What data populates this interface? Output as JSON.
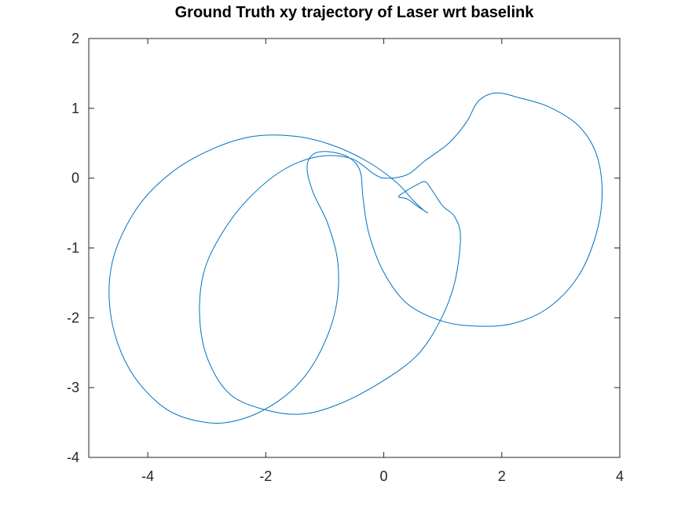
{
  "chart_data": {
    "type": "line",
    "title": "Ground Truth xy trajectory of Laser wrt baselink",
    "xlabel": "",
    "ylabel": "",
    "xlim": [
      -5,
      4
    ],
    "ylim": [
      -4,
      2
    ],
    "grid": false,
    "x_ticks": [
      -4,
      -2,
      0,
      2,
      4
    ],
    "y_ticks": [
      -4,
      -3,
      -2,
      -1,
      0,
      1,
      2
    ],
    "x_tick_labels": [
      "-4",
      "-2",
      "0",
      "2",
      "4"
    ],
    "y_tick_labels": [
      "-4",
      "-3",
      "-2",
      "-1",
      "0",
      "1",
      "2"
    ],
    "series": [
      {
        "color": "#0072bd",
        "points": [
          [
            0.7,
            -0.48
          ],
          [
            0.5,
            -0.32
          ],
          [
            0.2,
            -0.05
          ],
          [
            -0.3,
            0.25
          ],
          [
            -0.9,
            0.48
          ],
          [
            -1.5,
            0.6
          ],
          [
            -2.2,
            0.6
          ],
          [
            -2.9,
            0.42
          ],
          [
            -3.6,
            0.08
          ],
          [
            -4.2,
            -0.45
          ],
          [
            -4.6,
            -1.2
          ],
          [
            -4.62,
            -2.0
          ],
          [
            -4.3,
            -2.75
          ],
          [
            -3.7,
            -3.3
          ],
          [
            -3.0,
            -3.5
          ],
          [
            -2.4,
            -3.45
          ],
          [
            -1.8,
            -3.2
          ],
          [
            -1.35,
            -2.85
          ],
          [
            -1.0,
            -2.35
          ],
          [
            -0.8,
            -1.8
          ],
          [
            -0.78,
            -1.2
          ],
          [
            -0.95,
            -0.65
          ],
          [
            -1.2,
            -0.2
          ],
          [
            -1.3,
            0.15
          ],
          [
            -1.2,
            0.34
          ],
          [
            -0.95,
            0.38
          ],
          [
            -0.6,
            0.3
          ],
          [
            -0.4,
            0.1
          ],
          [
            -0.35,
            -0.3
          ],
          [
            -0.25,
            -0.8
          ],
          [
            0.0,
            -1.35
          ],
          [
            0.4,
            -1.8
          ],
          [
            1.0,
            -2.05
          ],
          [
            1.6,
            -2.12
          ],
          [
            2.2,
            -2.08
          ],
          [
            2.8,
            -1.85
          ],
          [
            3.3,
            -1.4
          ],
          [
            3.6,
            -0.8
          ],
          [
            3.7,
            -0.2
          ],
          [
            3.6,
            0.35
          ],
          [
            3.3,
            0.75
          ],
          [
            2.8,
            1.02
          ],
          [
            2.3,
            1.15
          ],
          [
            1.9,
            1.22
          ],
          [
            1.6,
            1.1
          ],
          [
            1.4,
            0.8
          ],
          [
            1.1,
            0.5
          ],
          [
            0.7,
            0.25
          ],
          [
            0.4,
            0.05
          ],
          [
            0.05,
            0.0
          ],
          [
            -0.15,
            0.05
          ],
          [
            -0.55,
            0.28
          ],
          [
            -1.1,
            0.31
          ],
          [
            -1.7,
            0.12
          ],
          [
            -2.3,
            -0.3
          ],
          [
            -2.75,
            -0.8
          ],
          [
            -3.05,
            -1.35
          ],
          [
            -3.12,
            -2.0
          ],
          [
            -2.98,
            -2.6
          ],
          [
            -2.6,
            -3.1
          ],
          [
            -2.0,
            -3.32
          ],
          [
            -1.4,
            -3.38
          ],
          [
            -0.8,
            -3.25
          ],
          [
            -0.1,
            -2.95
          ],
          [
            0.55,
            -2.55
          ],
          [
            0.95,
            -2.05
          ],
          [
            1.2,
            -1.5
          ],
          [
            1.3,
            -0.85
          ],
          [
            1.2,
            -0.55
          ],
          [
            1.0,
            -0.4
          ],
          [
            0.8,
            -0.15
          ],
          [
            0.7,
            -0.05
          ],
          [
            0.55,
            -0.1
          ],
          [
            0.35,
            -0.2
          ],
          [
            0.25,
            -0.27
          ],
          [
            0.4,
            -0.3
          ],
          [
            0.6,
            -0.42
          ],
          [
            0.75,
            -0.5
          ]
        ]
      }
    ]
  }
}
